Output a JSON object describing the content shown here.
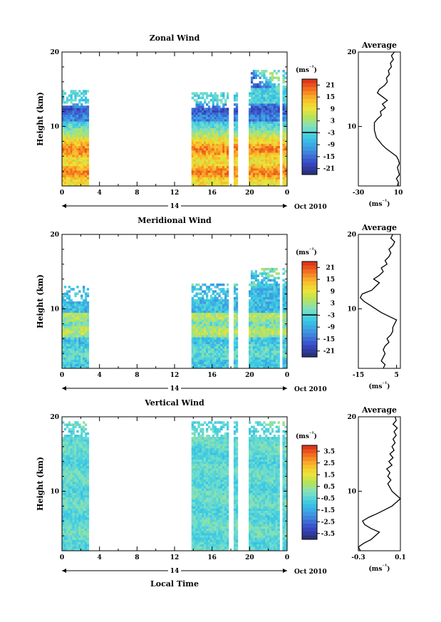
{
  "chart_data": [
    {
      "type": "heatmap",
      "title": "Zonal Wind",
      "ylabel": "Height (km)",
      "xlabel": "",
      "x_ticks": [
        "0",
        "4",
        "8",
        "12",
        "16",
        "20",
        "0"
      ],
      "y_ticks": [
        "20",
        "10"
      ],
      "xlim": [
        0,
        24
      ],
      "ylim": [
        2,
        20
      ],
      "date_label": "14",
      "date_suffix": "Oct 2010",
      "colorbar": {
        "unit": "(ms⁻¹)",
        "ticks": [
          "21",
          "15",
          "9",
          "3",
          "-3",
          "-9",
          "-15",
          "-21"
        ],
        "range": [
          -24,
          24
        ]
      },
      "data_segments": [
        [
          0,
          2.7
        ],
        [
          13.8,
          17.6
        ],
        [
          18.3,
          18.7
        ],
        [
          19.9,
          23.2
        ],
        [
          23.5,
          23.9
        ]
      ],
      "average": {
        "title": "Average",
        "xlabel": "(ms⁻¹)",
        "x_ticks": [
          "-30",
          "10"
        ],
        "xlim": [
          -30,
          12
        ],
        "y_ticks": [
          "20",
          "10"
        ],
        "height": [
          2.0,
          2.5,
          3.0,
          3.5,
          4.0,
          4.5,
          5.0,
          5.5,
          6.0,
          6.5,
          7.0,
          7.5,
          8.0,
          8.5,
          9.0,
          9.5,
          10.0,
          10.5,
          11.0,
          11.5,
          12.0,
          12.5,
          13.0,
          13.5,
          14.0,
          14.5,
          15.0,
          15.5,
          16.0,
          16.5,
          17.0,
          17.5,
          18.0,
          18.5,
          19.0,
          19.5,
          20.0
        ],
        "value": [
          9,
          10,
          8,
          11,
          10,
          9,
          11,
          10,
          8,
          3,
          -2,
          -6,
          -9,
          -12,
          -13,
          -14,
          -14,
          -14,
          -11,
          -7,
          -8,
          -3,
          -6,
          -1,
          -6,
          -11,
          -9,
          -4,
          -1,
          -2,
          1,
          0,
          3,
          2,
          5,
          3,
          6
        ]
      }
    },
    {
      "type": "heatmap",
      "title": "Meridional Wind",
      "ylabel": "Height (km)",
      "xlabel": "",
      "x_ticks": [
        "0",
        "4",
        "8",
        "12",
        "16",
        "20",
        "0"
      ],
      "y_ticks": [
        "20",
        "10"
      ],
      "xlim": [
        0,
        24
      ],
      "ylim": [
        2,
        20
      ],
      "date_label": "14",
      "date_suffix": "Oct 2010",
      "colorbar": {
        "unit": "(ms⁻¹)",
        "ticks": [
          "21",
          "15",
          "9",
          "3",
          "-3",
          "-9",
          "-15",
          "-21"
        ],
        "range": [
          -24,
          24
        ]
      },
      "data_segments": [
        [
          0,
          2.7
        ],
        [
          13.8,
          17.6
        ],
        [
          18.3,
          18.7
        ],
        [
          19.9,
          23.2
        ],
        [
          23.5,
          23.9
        ]
      ],
      "average": {
        "title": "Average",
        "xlabel": "(ms⁻¹)",
        "x_ticks": [
          "-15",
          "5"
        ],
        "xlim": [
          -15,
          7
        ],
        "y_ticks": [
          "20",
          "10"
        ],
        "height": [
          2.0,
          2.5,
          3.0,
          3.5,
          4.0,
          4.5,
          5.0,
          5.5,
          6.0,
          6.5,
          7.0,
          7.5,
          8.0,
          8.5,
          9.0,
          9.5,
          10.0,
          10.5,
          11.0,
          11.5,
          12.0,
          12.5,
          13.0,
          13.5,
          14.0,
          14.5,
          15.0,
          15.5,
          16.0,
          16.5,
          17.0,
          17.5,
          18.0,
          18.5,
          19.0,
          19.5,
          20.0
        ],
        "value": [
          -2,
          -1,
          -3,
          -2,
          -1,
          -2,
          -1,
          1,
          0,
          2,
          3,
          3,
          4,
          5,
          1,
          -3,
          -6,
          -9,
          -12,
          -14,
          -13,
          -8,
          -6,
          -4,
          -7,
          -4,
          -2,
          -3,
          0,
          -1,
          1,
          2,
          1,
          3,
          4,
          2,
          3
        ]
      }
    },
    {
      "type": "heatmap",
      "title": "Vertical Wind",
      "ylabel": "Height (km)",
      "xlabel": "Local Time",
      "x_ticks": [
        "0",
        "4",
        "8",
        "12",
        "16",
        "20",
        "0"
      ],
      "y_ticks": [
        "20",
        "10"
      ],
      "xlim": [
        0,
        24
      ],
      "ylim": [
        2,
        20
      ],
      "date_label": "14",
      "date_suffix": "Oct 2010",
      "colorbar": {
        "unit": "(ms⁻¹)",
        "ticks": [
          "3.5",
          "2.5",
          "1.5",
          "0.5",
          "-0.5",
          "-1.5",
          "-2.5",
          "-3.5"
        ],
        "range": [
          -4,
          4
        ]
      },
      "data_segments": [
        [
          0,
          2.7
        ],
        [
          13.8,
          17.6
        ],
        [
          18.3,
          18.7
        ],
        [
          19.9,
          23.2
        ],
        [
          23.5,
          23.9
        ]
      ],
      "average": {
        "title": "Average",
        "xlabel": "(ms⁻¹)",
        "x_ticks": [
          "-0.3",
          "0.1"
        ],
        "xlim": [
          -0.3,
          0.1
        ],
        "y_ticks": [
          "20",
          "10"
        ],
        "height": [
          2.0,
          2.5,
          3.0,
          3.5,
          4.0,
          4.5,
          5.0,
          5.5,
          6.0,
          6.5,
          7.0,
          7.5,
          8.0,
          8.5,
          9.0,
          9.5,
          10.0,
          10.5,
          11.0,
          11.5,
          12.0,
          12.5,
          13.0,
          13.5,
          14.0,
          14.5,
          15.0,
          15.5,
          16.0,
          16.5,
          17.0,
          17.5,
          18.0,
          18.5,
          19.0,
          19.5,
          20.0
        ],
        "value": [
          -0.28,
          -0.3,
          -0.25,
          -0.18,
          -0.14,
          -0.1,
          -0.18,
          -0.24,
          -0.26,
          -0.2,
          -0.12,
          -0.05,
          0.02,
          0.06,
          0.1,
          0.06,
          0.02,
          0.0,
          -0.02,
          0.01,
          -0.02,
          0.0,
          -0.03,
          0.02,
          -0.01,
          0.03,
          0.0,
          0.04,
          0.02,
          0.05,
          0.03,
          0.06,
          0.04,
          0.07,
          0.03,
          0.06,
          0.05
        ]
      }
    }
  ]
}
